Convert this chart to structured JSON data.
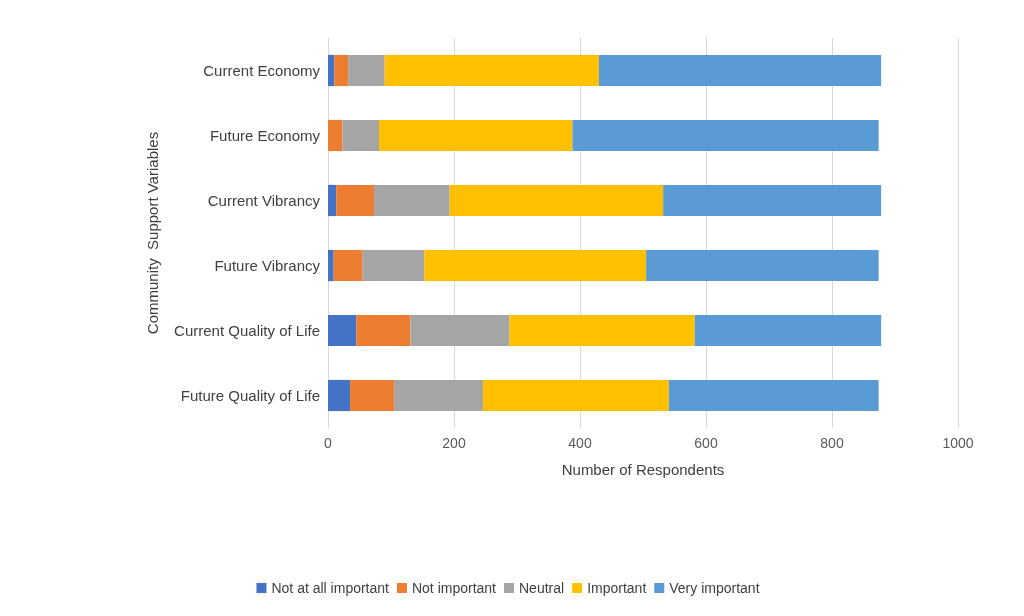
{
  "chart_data": {
    "type": "bar",
    "orientation": "horizontal",
    "stacked": true,
    "categories": [
      "Current Economy",
      "Future Economy",
      "Current Vibrancy",
      "Future Vibrancy",
      "Current Quality of Life",
      "Future Quality of Life"
    ],
    "series": [
      {
        "name": "Not at all important",
        "color": "#4472c4",
        "values": [
          10,
          0,
          13,
          9,
          45,
          35
        ]
      },
      {
        "name": "Not important",
        "color": "#ed7d31",
        "values": [
          22,
          23,
          60,
          46,
          86,
          70
        ]
      },
      {
        "name": "Neutral",
        "color": "#a5a5a5",
        "values": [
          58,
          58,
          120,
          98,
          157,
          141
        ]
      },
      {
        "name": "Important",
        "color": "#ffc000",
        "values": [
          340,
          307,
          339,
          352,
          294,
          295
        ]
      },
      {
        "name": "Very important",
        "color": "#5b9bd5",
        "values": [
          448,
          486,
          346,
          369,
          296,
          333
        ]
      }
    ],
    "xlim": [
      0,
      1000
    ],
    "xticks": [
      0,
      200,
      400,
      600,
      800,
      1000
    ],
    "xlabel": "Number of Respondents",
    "ylabel": "Community  Support Variables",
    "grid": "x",
    "legend": "bottom"
  }
}
